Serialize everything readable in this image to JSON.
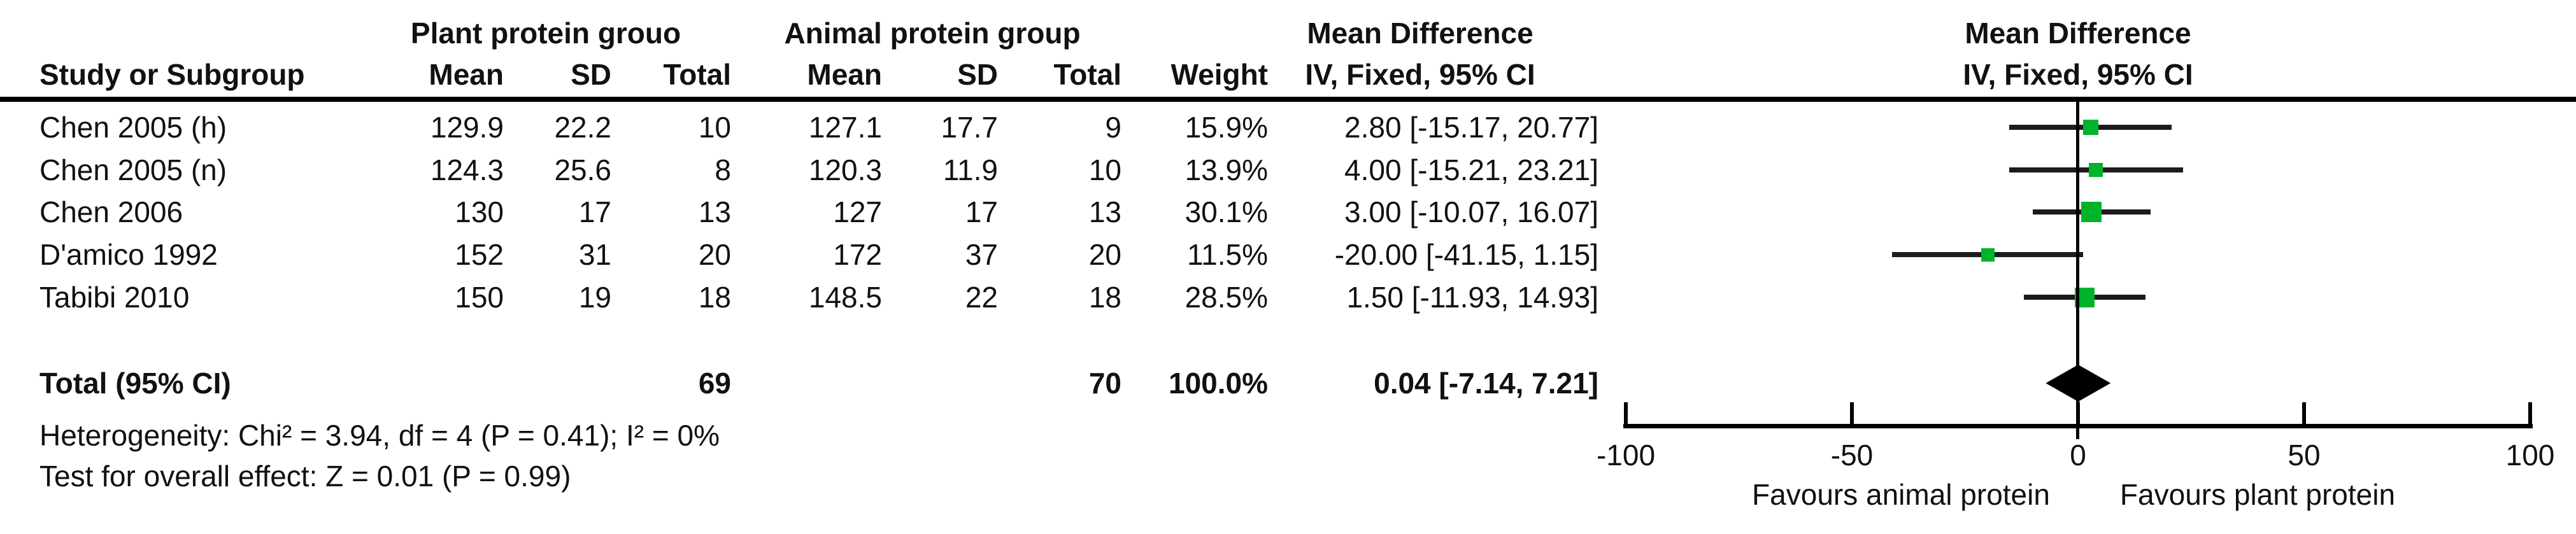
{
  "figure": {
    "header": {
      "study_col": "Study or Subgroup",
      "group1": "Plant protein grouo",
      "group2": "Animal protein group",
      "mean": "Mean",
      "sd": "SD",
      "total": "Total",
      "weight": "Weight",
      "effect": "Mean Difference",
      "effect_sub": "IV, Fixed, 95% CI",
      "plot_effect": "Mean Difference",
      "plot_effect_sub": "IV, Fixed, 95% CI"
    },
    "rows": [
      {
        "study": "Chen 2005 (h)",
        "p_mean": "129.9",
        "p_sd": "22.2",
        "p_total": "10",
        "a_mean": "127.1",
        "a_sd": "17.7",
        "a_total": "9",
        "weight": "15.9%",
        "ci": "2.80 [-15.17, 20.77]"
      },
      {
        "study": "Chen 2005 (n)",
        "p_mean": "124.3",
        "p_sd": "25.6",
        "p_total": "8",
        "a_mean": "120.3",
        "a_sd": "11.9",
        "a_total": "10",
        "weight": "13.9%",
        "ci": "4.00 [-15.21, 23.21]"
      },
      {
        "study": "Chen 2006",
        "p_mean": "130",
        "p_sd": "17",
        "p_total": "13",
        "a_mean": "127",
        "a_sd": "17",
        "a_total": "13",
        "weight": "30.1%",
        "ci": "3.00 [-10.07, 16.07]"
      },
      {
        "study": "D'amico 1992",
        "p_mean": "152",
        "p_sd": "31",
        "p_total": "20",
        "a_mean": "172",
        "a_sd": "37",
        "a_total": "20",
        "weight": "11.5%",
        "ci": "-20.00 [-41.15, 1.15]"
      },
      {
        "study": "Tabibi 2010",
        "p_mean": "150",
        "p_sd": "19",
        "p_total": "18",
        "a_mean": "148.5",
        "a_sd": "22",
        "a_total": "18",
        "weight": "28.5%",
        "ci": "1.50 [-11.93, 14.93]"
      }
    ],
    "total": {
      "label": "Total (95% CI)",
      "p_total": "69",
      "a_total": "70",
      "weight": "100.0%",
      "ci": "0.04 [-7.14, 7.21]"
    },
    "footer": {
      "heterogeneity": "Heterogeneity: Chi² = 3.94, df = 4 (P = 0.41); I² = 0%",
      "overall": "Test for overall effect: Z = 0.01 (P = 0.99)"
    }
  },
  "chart_data": {
    "type": "forest",
    "effect_measure": "Mean Difference (IV, Fixed, 95% CI)",
    "comparison_groups": [
      "Plant protein grouo",
      "Animal protein group"
    ],
    "studies": [
      {
        "name": "Chen 2005 (h)",
        "md": 2.8,
        "ci_low": -15.17,
        "ci_high": 20.77,
        "weight_pct": 15.9
      },
      {
        "name": "Chen 2005 (n)",
        "md": 4.0,
        "ci_low": -15.21,
        "ci_high": 23.21,
        "weight_pct": 13.9
      },
      {
        "name": "Chen 2006",
        "md": 3.0,
        "ci_low": -10.07,
        "ci_high": 16.07,
        "weight_pct": 30.1
      },
      {
        "name": "D'amico 1992",
        "md": -20.0,
        "ci_low": -41.15,
        "ci_high": 1.15,
        "weight_pct": 11.5
      },
      {
        "name": "Tabibi 2010",
        "md": 1.5,
        "ci_low": -11.93,
        "ci_high": 14.93,
        "weight_pct": 28.5
      }
    ],
    "total": {
      "md": 0.04,
      "ci_low": -7.14,
      "ci_high": 7.21,
      "weight_pct": 100.0
    },
    "heterogeneity": {
      "chi2": 3.94,
      "df": 4,
      "p": 0.41,
      "i2_pct": 0
    },
    "overall_effect": {
      "z": 0.01,
      "p": 0.99
    },
    "xlim": [
      -100,
      100
    ],
    "ticks": [
      -100,
      -50,
      0,
      50,
      100
    ],
    "tick_labels": [
      "-100",
      "-50",
      "0",
      "50",
      "100"
    ],
    "favours_left": "Favours animal protein",
    "favours_right": "Favours plant protein"
  },
  "colors": {
    "square": "#00b32a",
    "line": "#1c1c1c",
    "text": "#111111",
    "axis": "#000000"
  }
}
